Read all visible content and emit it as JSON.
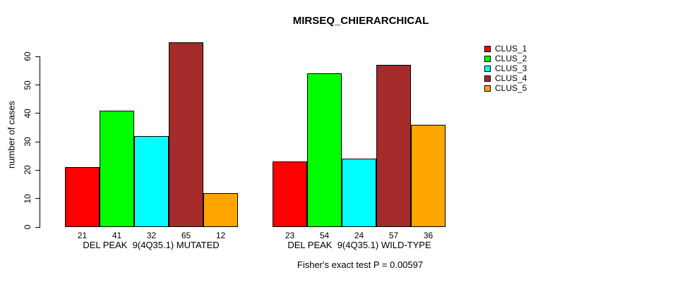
{
  "chart_data": {
    "type": "bar",
    "title": "MIRSEQ_CHIERARCHICAL",
    "ylabel": "number of cases",
    "xlabel": "",
    "ylim": [
      0,
      60
    ],
    "yticks": [
      0,
      10,
      20,
      30,
      40,
      50,
      60
    ],
    "grid": false,
    "legend_position": "right-outside",
    "bar_value_labels_shown": true,
    "series": [
      {
        "name": "CLUS_1",
        "color": "#ff0000"
      },
      {
        "name": "CLUS_2",
        "color": "#00ff00"
      },
      {
        "name": "CLUS_3",
        "color": "#00ffff"
      },
      {
        "name": "CLUS_4",
        "color": "#a52a2a"
      },
      {
        "name": "CLUS_5",
        "color": "#ffa500"
      }
    ],
    "groups": [
      {
        "label": "DEL PEAK  9(4Q35.1) MUTATED",
        "values": [
          21,
          41,
          32,
          65,
          12
        ]
      },
      {
        "label": "DEL PEAK  9(4Q35.1) WILD-TYPE",
        "values": [
          23,
          54,
          24,
          57,
          36
        ]
      }
    ],
    "annotation": "Fisher's exact test P = 0.00597"
  }
}
